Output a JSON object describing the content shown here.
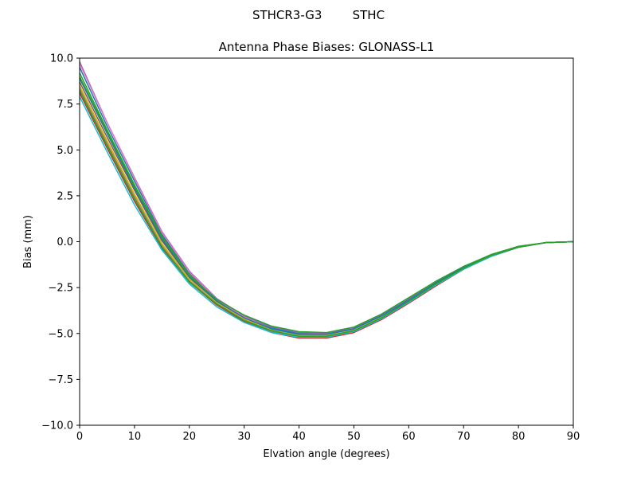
{
  "figure": {
    "suptitle": "STHCR3-G3        STHC"
  },
  "chart_data": {
    "type": "line",
    "title": "Antenna Phase Biases: GLONASS-L1",
    "xlabel": "Elvation angle (degrees)",
    "ylabel": "Bias (mm)",
    "xlim": [
      0,
      90
    ],
    "ylim": [
      -10,
      10
    ],
    "xticks": [
      "0",
      "10",
      "20",
      "30",
      "40",
      "50",
      "60",
      "70",
      "80",
      "90"
    ],
    "yticks": [
      "10.0",
      "7.5",
      "5.0",
      "2.5",
      "0.0",
      "−2.5",
      "−5.0",
      "−7.5",
      "−10.0"
    ],
    "grid": false,
    "legend": "none",
    "x": [
      0,
      5,
      10,
      15,
      20,
      25,
      30,
      35,
      40,
      45,
      50,
      55,
      60,
      65,
      70,
      75,
      80,
      85,
      90
    ],
    "series": [
      {
        "color": "#1f77b4",
        "values": [
          9.5,
          6.3,
          3.3,
          0.4,
          -1.7,
          -3.2,
          -4.1,
          -4.7,
          -5.0,
          -5.05,
          -4.75,
          -4.05,
          -3.15,
          -2.2,
          -1.4,
          -0.75,
          -0.3,
          -0.05,
          0.0
        ]
      },
      {
        "color": "#ff7f0e",
        "values": [
          8.4,
          5.4,
          2.5,
          -0.2,
          -2.1,
          -3.35,
          -4.25,
          -4.85,
          -5.15,
          -5.15,
          -4.85,
          -4.15,
          -3.3,
          -2.35,
          -1.45,
          -0.8,
          -0.3,
          -0.05,
          0.0
        ]
      },
      {
        "color": "#2ca02c",
        "values": [
          9.2,
          6.1,
          3.1,
          0.3,
          -1.8,
          -3.2,
          -4.1,
          -4.65,
          -4.95,
          -5.0,
          -4.7,
          -4.0,
          -3.1,
          -2.2,
          -1.4,
          -0.75,
          -0.3,
          -0.05,
          0.0
        ]
      },
      {
        "color": "#d62728",
        "values": [
          8.1,
          5.1,
          2.2,
          -0.35,
          -2.2,
          -3.45,
          -4.35,
          -4.95,
          -5.25,
          -5.25,
          -4.95,
          -4.25,
          -3.35,
          -2.4,
          -1.5,
          -0.8,
          -0.3,
          -0.05,
          0.0
        ]
      },
      {
        "color": "#9467bd",
        "values": [
          9.8,
          6.5,
          3.5,
          0.55,
          -1.6,
          -3.1,
          -4.05,
          -4.65,
          -4.95,
          -5.0,
          -4.7,
          -4.0,
          -3.1,
          -2.15,
          -1.35,
          -0.75,
          -0.3,
          -0.05,
          0.0
        ]
      },
      {
        "color": "#8c564b",
        "values": [
          8.7,
          5.7,
          2.8,
          0.05,
          -1.95,
          -3.3,
          -4.2,
          -4.8,
          -5.1,
          -5.1,
          -4.8,
          -4.1,
          -3.25,
          -2.3,
          -1.45,
          -0.8,
          -0.3,
          -0.05,
          0.0
        ]
      },
      {
        "color": "#e377c2",
        "values": [
          9.7,
          6.5,
          3.45,
          0.5,
          -1.65,
          -3.15,
          -4.1,
          -4.75,
          -5.1,
          -5.15,
          -4.85,
          -4.15,
          -3.3,
          -2.35,
          -1.45,
          -0.8,
          -0.3,
          -0.05,
          0.0
        ]
      },
      {
        "color": "#7f7f7f",
        "values": [
          8.3,
          5.3,
          2.4,
          -0.25,
          -2.15,
          -3.4,
          -4.3,
          -4.9,
          -5.2,
          -5.2,
          -4.9,
          -4.2,
          -3.3,
          -2.35,
          -1.5,
          -0.8,
          -0.3,
          -0.05,
          0.0
        ]
      },
      {
        "color": "#bcbd22",
        "values": [
          8.5,
          5.5,
          2.6,
          -0.1,
          -2.05,
          -3.3,
          -4.2,
          -4.8,
          -5.1,
          -5.1,
          -4.8,
          -4.1,
          -3.2,
          -2.3,
          -1.45,
          -0.75,
          -0.3,
          -0.05,
          0.0
        ]
      },
      {
        "color": "#17becf",
        "values": [
          7.9,
          4.9,
          2.0,
          -0.45,
          -2.3,
          -3.55,
          -4.4,
          -4.95,
          -5.2,
          -5.2,
          -4.9,
          -4.2,
          -3.3,
          -2.35,
          -1.5,
          -0.8,
          -0.3,
          -0.05,
          0.0
        ]
      },
      {
        "color": "#1f77b4",
        "values": [
          8.9,
          5.9,
          2.9,
          0.15,
          -1.9,
          -3.25,
          -4.15,
          -4.75,
          -5.05,
          -5.05,
          -4.75,
          -4.05,
          -3.2,
          -2.25,
          -1.4,
          -0.75,
          -0.3,
          -0.05,
          0.0
        ]
      },
      {
        "color": "#2ca02c",
        "values": [
          8.2,
          5.2,
          2.3,
          -0.3,
          -2.2,
          -3.4,
          -4.3,
          -4.85,
          -5.15,
          -5.15,
          -4.85,
          -4.15,
          -3.25,
          -2.3,
          -1.45,
          -0.75,
          -0.3,
          -0.05,
          0.0
        ]
      },
      {
        "color": "#2ca02c",
        "values": [
          9.0,
          6.0,
          3.0,
          0.25,
          -1.85,
          -3.15,
          -4.0,
          -4.6,
          -4.9,
          -4.95,
          -4.65,
          -3.95,
          -3.05,
          -2.15,
          -1.35,
          -0.7,
          -0.25,
          -0.05,
          0.0
        ]
      }
    ]
  }
}
